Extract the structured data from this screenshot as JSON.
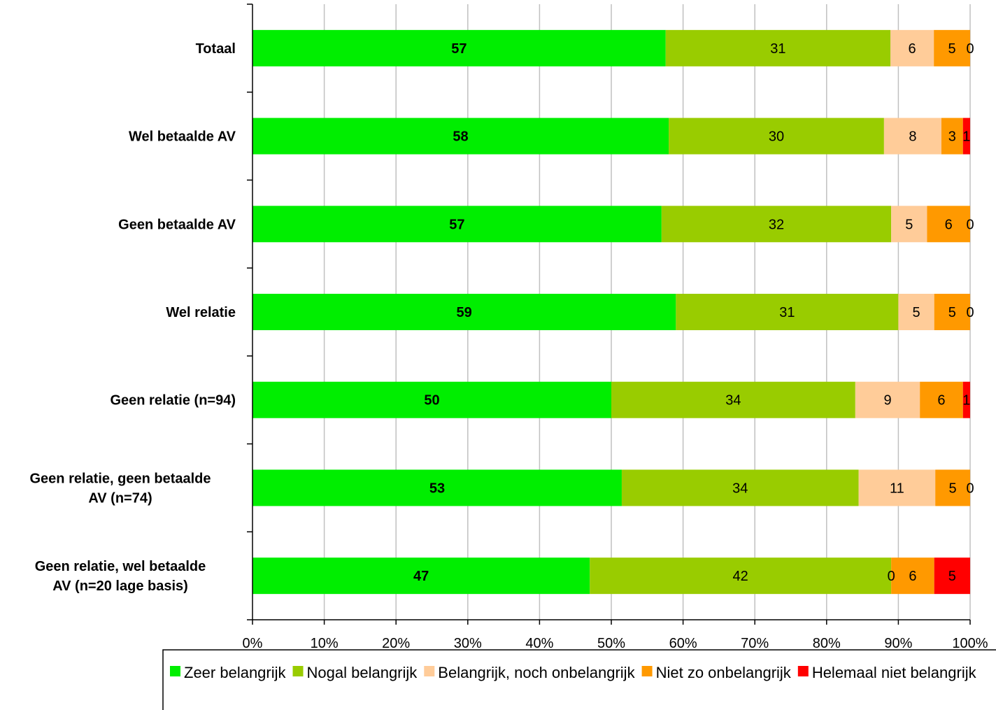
{
  "chart_data": {
    "type": "bar",
    "orientation": "horizontal",
    "stacked": "percent",
    "title": "",
    "xlabel": "",
    "ylabel": "",
    "xlim": [
      0,
      100
    ],
    "x_ticks": [
      "0%",
      "10%",
      "20%",
      "30%",
      "40%",
      "50%",
      "60%",
      "70%",
      "80%",
      "90%",
      "100%"
    ],
    "grid": "vertical",
    "legend_position": "bottom",
    "categories": [
      [
        "Totaal"
      ],
      [
        "Wel betaalde AV"
      ],
      [
        "Geen betaalde AV"
      ],
      [
        "Wel relatie"
      ],
      [
        "Geen relatie (n=94)"
      ],
      [
        "Geen relatie, geen betaalde",
        "AV (n=74)"
      ],
      [
        "Geen relatie, wel betaalde",
        "AV (n=20 lage basis)"
      ]
    ],
    "series": [
      {
        "name": "Zeer belangrijk",
        "color": "#00ee00",
        "bold_labels": true,
        "values": [
          57,
          58,
          57,
          59,
          50,
          53,
          47
        ]
      },
      {
        "name": "Nogal belangrijk",
        "color": "#99cc00",
        "bold_labels": false,
        "values": [
          31,
          30,
          32,
          31,
          34,
          34,
          42
        ]
      },
      {
        "name": "Belangrijk, noch onbelangrijk",
        "color": "#ffcc99",
        "bold_labels": false,
        "values": [
          6,
          8,
          5,
          5,
          9,
          11,
          0
        ]
      },
      {
        "name": "Niet zo onbelangrijk",
        "color": "#ff9900",
        "bold_labels": false,
        "values": [
          5,
          3,
          6,
          5,
          6,
          5,
          6
        ]
      },
      {
        "name": "Helemaal niet belangrijk",
        "color": "#ff0000",
        "bold_labels": false,
        "values": [
          0,
          1,
          0,
          0,
          1,
          0,
          5
        ]
      }
    ]
  }
}
